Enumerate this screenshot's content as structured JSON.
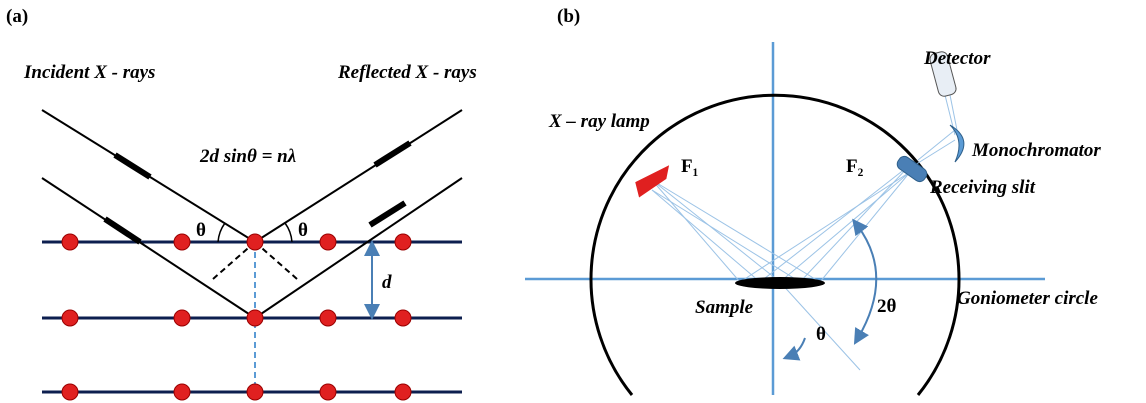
{
  "panel_a": {
    "label": "(a)",
    "incident": "Incident X - rays",
    "reflected": "Reflected X - rays",
    "equation": "2d sinθ = nλ",
    "theta_left": "θ",
    "theta_right": "θ",
    "spacing": "d"
  },
  "panel_b": {
    "label": "(b)",
    "lamp": "X – ray lamp",
    "focus_1": "F₁",
    "focus_2": "F₂",
    "detector": "Detector",
    "monochromator": "Monochromator",
    "slit": "Receiving slit",
    "sample": "Sample",
    "theta": "θ",
    "two_theta": "2θ",
    "circle": "Goniometer circle"
  }
}
